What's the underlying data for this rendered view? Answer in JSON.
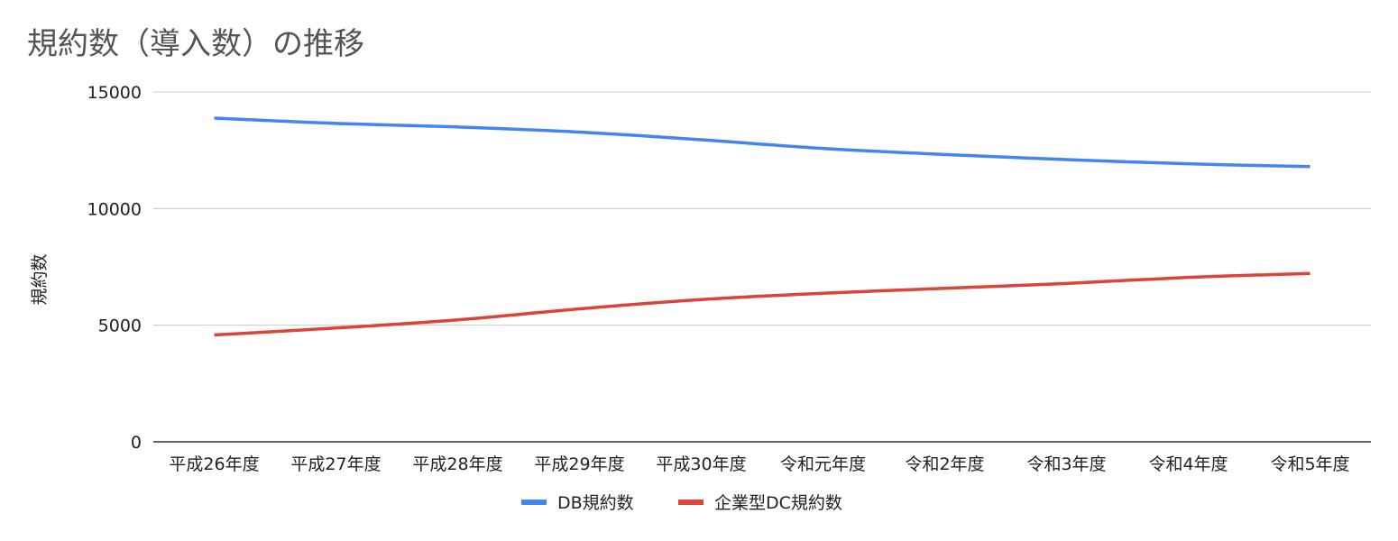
{
  "chart_data": {
    "type": "line",
    "title": "規約数（導入数）の推移",
    "xlabel": "",
    "ylabel": "規約数",
    "ylim": [
      0,
      15000
    ],
    "yticks": [
      0,
      5000,
      10000,
      15000
    ],
    "grid": true,
    "legend_position": "bottom",
    "categories": [
      "平成26年度",
      "平成27年度",
      "平成28年度",
      "平成29年度",
      "平成30年度",
      "令和元年度",
      "令和2年度",
      "令和3年度",
      "令和4年度",
      "令和5年度"
    ],
    "series": [
      {
        "name": "DB規約数",
        "color": "#4285F4",
        "values": [
          13880,
          13650,
          13500,
          13280,
          12950,
          12580,
          12320,
          12100,
          11920,
          11800
        ]
      },
      {
        "name": "企業型DC規約数",
        "color": "#DB4437",
        "values": [
          4580,
          4880,
          5230,
          5700,
          6100,
          6370,
          6580,
          6790,
          7050,
          7220
        ]
      }
    ]
  }
}
